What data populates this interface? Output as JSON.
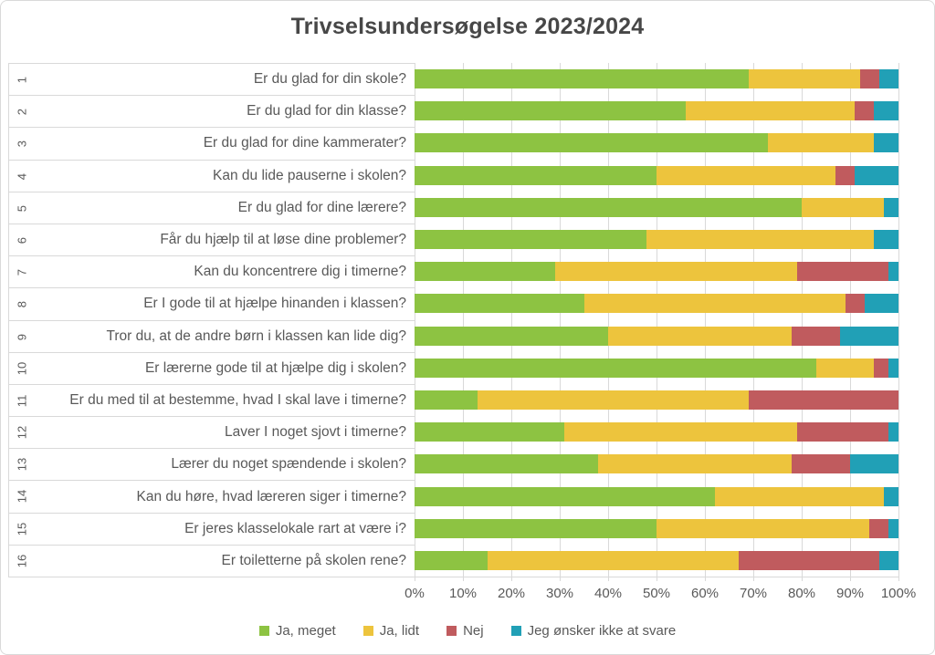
{
  "title": "Trivselsundersøgelse 2023/2024",
  "colors": {
    "ja_meget": "#8dc342",
    "ja_lidt": "#edc43d",
    "nej": "#c05b5e",
    "onsker_ikke": "#21a0b6",
    "gridline": "#d9d9d9",
    "text": "#595959",
    "title_text": "#474747"
  },
  "legend": [
    {
      "label": "Ja, meget",
      "color": "#8dc342"
    },
    {
      "label": "Ja, lidt",
      "color": "#edc43d"
    },
    {
      "label": "Nej",
      "color": "#c05b5e"
    },
    {
      "label": "Jeg ønsker ikke at svare",
      "color": "#21a0b6"
    }
  ],
  "chart_data": {
    "type": "bar",
    "stacked": true,
    "orientation": "horizontal",
    "title": "Trivselsundersøgelse 2023/2024",
    "units": "percent",
    "xlim": [
      0,
      100
    ],
    "x_tick_labels": [
      "0%",
      "10%",
      "20%",
      "30%",
      "40%",
      "50%",
      "60%",
      "70%",
      "80%",
      "90%",
      "100%"
    ],
    "grid": "vertical",
    "legend_position": "bottom",
    "row_numbers": [
      "1",
      "2",
      "3",
      "4",
      "5",
      "6",
      "7",
      "8",
      "9",
      "10",
      "11",
      "12",
      "13",
      "14",
      "15",
      "16"
    ],
    "categories": [
      "Er du glad for din skole?",
      "Er du glad for din klasse?",
      "Er du glad for dine kammerater?",
      "Kan du lide pauserne i skolen?",
      "Er du glad for dine lærere?",
      "Får du hjælp til at løse dine problemer?",
      "Kan du koncentrere dig i timerne?",
      "Er I gode til at hjælpe hinanden i klassen?",
      "Tror du, at de andre børn i klassen kan lide dig?",
      "Er lærerne gode til at hjælpe dig i skolen?",
      "Er du med til at bestemme, hvad I skal lave i timerne?",
      "Laver I noget sjovt i timerne?",
      "Lærer du noget spændende i skolen?",
      "Kan du høre, hvad læreren siger i timerne?",
      "Er jeres klasselokale rart at være i?",
      "Er toiletterne på skolen rene?"
    ],
    "series": [
      {
        "name": "Ja, meget",
        "slug": "ja-meget",
        "color": "#8dc342",
        "values": [
          69,
          56,
          73,
          50,
          80,
          48,
          29,
          35,
          40,
          83,
          13,
          31,
          38,
          62,
          50,
          15
        ]
      },
      {
        "name": "Ja, lidt",
        "slug": "ja-lidt",
        "color": "#edc43d",
        "values": [
          23,
          35,
          22,
          37,
          17,
          47,
          50,
          54,
          38,
          12,
          56,
          48,
          40,
          35,
          44,
          52
        ]
      },
      {
        "name": "Nej",
        "slug": "nej",
        "color": "#c05b5e",
        "values": [
          4,
          4,
          0,
          4,
          0,
          0,
          19,
          4,
          10,
          3,
          31,
          19,
          12,
          0,
          4,
          29
        ]
      },
      {
        "name": "Jeg ønsker ikke at svare",
        "slug": "onsker-ikke-svare",
        "color": "#21a0b6",
        "values": [
          4,
          5,
          5,
          9,
          3,
          5,
          2,
          7,
          12,
          2,
          0,
          2,
          10,
          3,
          2,
          4
        ]
      }
    ]
  }
}
